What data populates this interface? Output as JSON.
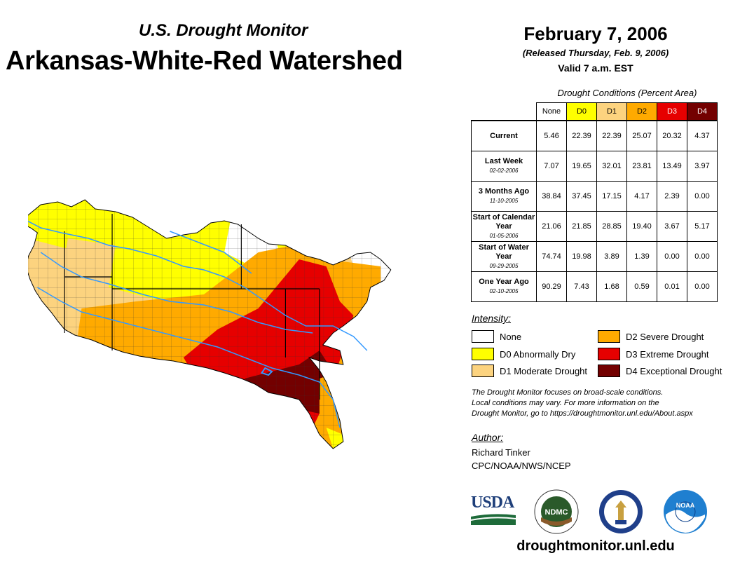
{
  "header": {
    "subtitle": "U.S. Drought Monitor",
    "title": "Arkansas-White-Red Watershed",
    "date": "February 7, 2006",
    "released": "(Released Thursday, Feb. 9, 2006)",
    "valid": "Valid 7 a.m. EST"
  },
  "table": {
    "caption": "Drought Conditions (Percent Area)",
    "columns": [
      "None",
      "D0",
      "D1",
      "D2",
      "D3",
      "D4"
    ],
    "rows": [
      {
        "label": "Current",
        "date": "",
        "values": [
          "5.46",
          "22.39",
          "22.39",
          "25.07",
          "20.32",
          "4.37"
        ]
      },
      {
        "label": "Last Week",
        "date": "02-02-2006",
        "values": [
          "7.07",
          "19.65",
          "32.01",
          "23.81",
          "13.49",
          "3.97"
        ]
      },
      {
        "label": "3 Months Ago",
        "date": "11-10-2005",
        "values": [
          "38.84",
          "37.45",
          "17.15",
          "4.17",
          "2.39",
          "0.00"
        ]
      },
      {
        "label": "Start of Calendar Year",
        "date": "01-05-2006",
        "values": [
          "21.06",
          "21.85",
          "28.85",
          "19.40",
          "3.67",
          "5.17"
        ]
      },
      {
        "label": "Start of Water Year",
        "date": "09-29-2005",
        "values": [
          "74.74",
          "19.98",
          "3.89",
          "1.39",
          "0.00",
          "0.00"
        ]
      },
      {
        "label": "One Year Ago",
        "date": "02-10-2005",
        "values": [
          "90.29",
          "7.43",
          "1.68",
          "0.59",
          "0.01",
          "0.00"
        ]
      }
    ]
  },
  "legend": {
    "title": "Intensity:",
    "items": [
      {
        "label": "None",
        "color": "#ffffff"
      },
      {
        "label": "D0 Abnormally Dry",
        "color": "#ffff00"
      },
      {
        "label": "D1 Moderate Drought",
        "color": "#fcd37f"
      },
      {
        "label": "D2 Severe Drought",
        "color": "#ffaa00"
      },
      {
        "label": "D3 Extreme Drought",
        "color": "#e60000"
      },
      {
        "label": "D4 Exceptional Drought",
        "color": "#730000"
      }
    ]
  },
  "note": {
    "line1": "The Drought Monitor focuses on broad-scale conditions.",
    "line2": "Local conditions may vary. For more information on the",
    "line3": "Drought Monitor, go to https://droughtmonitor.unl.edu/About.aspx"
  },
  "author": {
    "title": "Author:",
    "name": "Richard Tinker",
    "org": "CPC/NOAA/NWS/NCEP"
  },
  "logos": {
    "usda": "USDA",
    "ndmc": "NDMC",
    "noaa": "NOAA"
  },
  "footer": {
    "url": "droughtmonitor.unl.edu"
  },
  "colors": {
    "none": "#ffffff",
    "d0": "#ffff00",
    "d1": "#fcd37f",
    "d2": "#ffaa00",
    "d3": "#e60000",
    "d4": "#730000",
    "river": "#3399ff"
  }
}
